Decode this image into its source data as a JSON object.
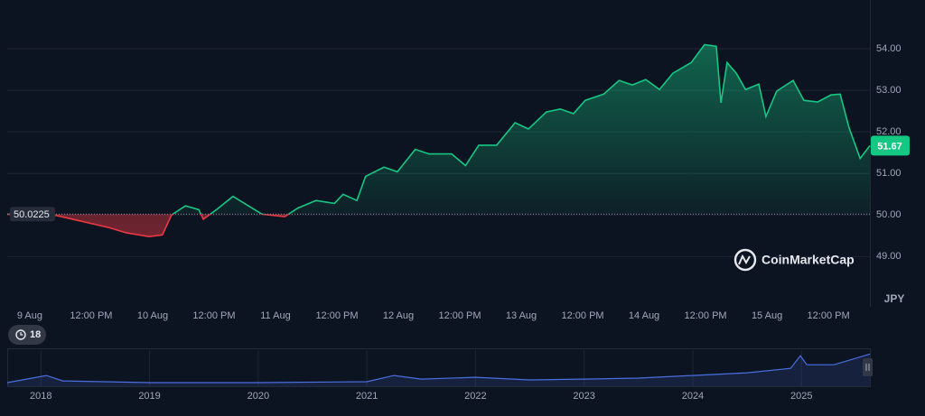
{
  "chart_data": [
    {
      "type": "line",
      "x": [
        -4.4,
        4.8,
        10.1,
        15.4,
        18.9,
        23.3,
        25.9,
        27.7,
        30.4,
        33.0,
        33.9,
        36.5,
        39.7,
        42.7,
        45.4,
        49.8,
        52.4,
        55.9,
        59.5,
        61.2,
        63.9,
        65.6,
        69.2,
        71.8,
        75.3,
        78.0,
        82.4,
        85.1,
        87.7,
        91.2,
        94.8,
        97.4,
        100.9,
        103.6,
        106.2,
        108.5,
        112.1,
        115.1,
        117.7,
        120.3,
        123.0,
        125.6,
        129.2,
        131.8,
        134.1,
        135.0,
        136.2,
        138.0,
        139.8,
        142.4,
        143.8,
        145.9,
        149.1,
        151.2,
        153.9,
        156.5,
        158.3,
        160.0,
        162.2,
        164.1
      ],
      "series": [
        {
          "color": "#16c784",
          "values": [
            50.02,
            50.0,
            49.85,
            49.7,
            49.57,
            49.48,
            49.52,
            50.0,
            50.22,
            50.13,
            49.9,
            50.13,
            50.45,
            50.22,
            50.02,
            49.96,
            50.17,
            50.35,
            50.28,
            50.5,
            50.35,
            50.93,
            51.15,
            51.04,
            51.58,
            51.47,
            51.47,
            51.19,
            51.68,
            51.68,
            52.22,
            52.07,
            52.48,
            52.55,
            52.44,
            52.76,
            52.91,
            53.24,
            53.13,
            53.26,
            53.02,
            53.41,
            53.67,
            54.1,
            54.06,
            52.7,
            53.67,
            53.41,
            53.02,
            53.15,
            52.37,
            52.98,
            53.24,
            52.76,
            52.72,
            52.89,
            52.91,
            52.11,
            51.36,
            51.67
          ]
        }
      ],
      "down_color": "#ea3943",
      "baseline": 50.0225,
      "xlim": [
        -4.4,
        164.1
      ],
      "ylim": [
        47.9,
        55
      ],
      "yticks": [
        {
          "value": 49,
          "label": "49.00"
        },
        {
          "value": 50,
          "label": "50.00"
        },
        {
          "value": 51,
          "label": "51.00"
        },
        {
          "value": 52,
          "label": "52.00"
        },
        {
          "value": 53,
          "label": "53.00"
        },
        {
          "value": 54,
          "label": "54.00"
        }
      ],
      "xticks": [
        {
          "value": 0,
          "label": "9 Aug"
        },
        {
          "value": 12,
          "label": "12:00 PM"
        },
        {
          "value": 24,
          "label": "10 Aug"
        },
        {
          "value": 36,
          "label": "12:00 PM"
        },
        {
          "value": 48,
          "label": "11 Aug"
        },
        {
          "value": 60,
          "label": "12:00 PM"
        },
        {
          "value": 72,
          "label": "12 Aug"
        },
        {
          "value": 84,
          "label": "12:00 PM"
        },
        {
          "value": 96,
          "label": "13 Aug"
        },
        {
          "value": 108,
          "label": "12:00 PM"
        },
        {
          "value": 120,
          "label": "14 Aug"
        },
        {
          "value": 132,
          "label": "12:00 PM"
        },
        {
          "value": 144,
          "label": "15 Aug"
        },
        {
          "value": 156,
          "label": "12:00 PM"
        }
      ],
      "grid": true,
      "currency": "JPY",
      "watermark": "CoinMarketCap",
      "badge": "18"
    },
    {
      "type": "line",
      "x": [
        2017.69,
        2018.05,
        2018.2,
        2019,
        2020,
        2021,
        2021.25,
        2021.5,
        2022,
        2022.5,
        2023,
        2023.5,
        2024,
        2024.5,
        2024.9,
        2024.99,
        2025.05,
        2025.3,
        2025.63
      ],
      "series": [
        {
          "color": "#4a6ee0",
          "values": [
            14.6,
            23.7,
            16.8,
            14.6,
            14.6,
            15.7,
            23.7,
            19.1,
            21.4,
            18.0,
            19.1,
            20.3,
            23.7,
            27.1,
            32.8,
            48.8,
            37.4,
            37.4,
            51.0
          ]
        }
      ],
      "xlim": [
        2017.69,
        2025.63
      ],
      "ylim": [
        10,
        56
      ],
      "xticks": [
        2018,
        2019,
        2020,
        2021,
        2022,
        2023,
        2024,
        2025
      ]
    }
  ]
}
